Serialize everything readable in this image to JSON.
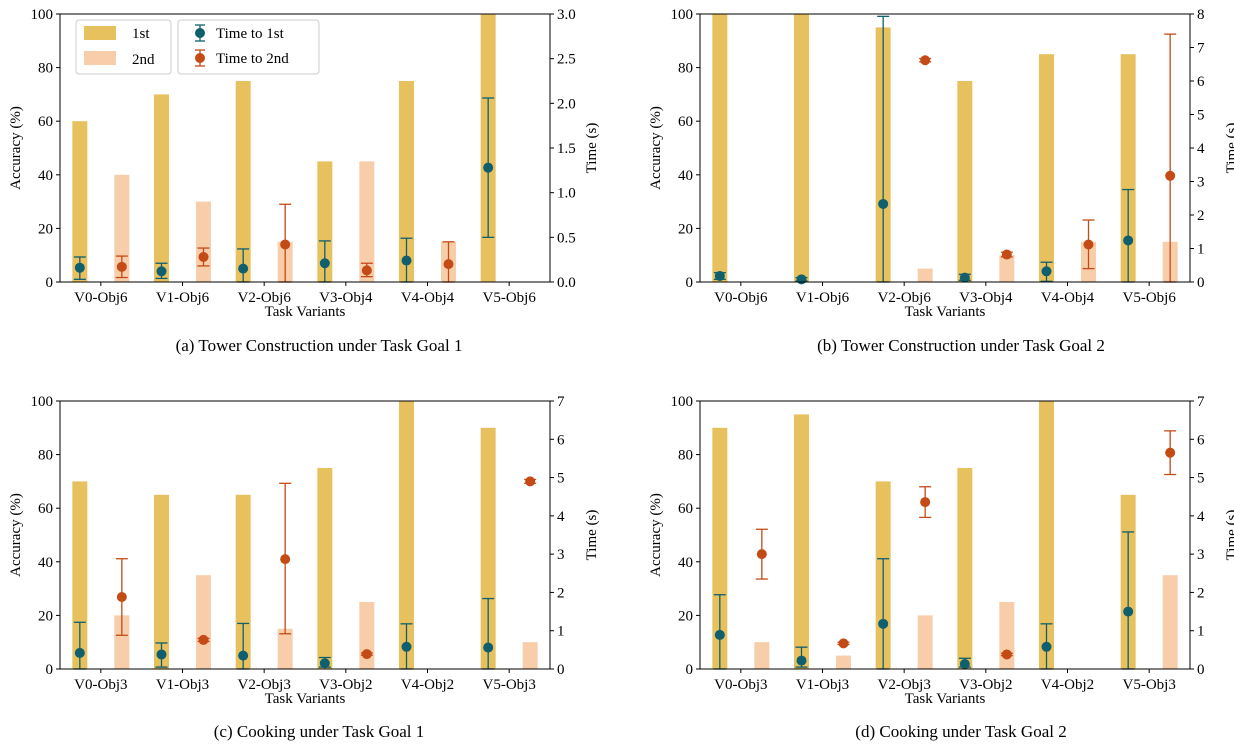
{
  "legend": {
    "bar_first": "1st",
    "bar_second": "2nd",
    "time_first": "Time to 1st",
    "time_second": "Time to 2nd"
  },
  "colors": {
    "bar_first": "#e8c15f",
    "bar_second": "#f8cdaa",
    "time_first": "#0f5f6e",
    "time_second": "#c44a16"
  },
  "chart_data": [
    {
      "type": "bar",
      "caption": "(a) Tower Construction under Task Goal 1",
      "categories": [
        "V0-Obj6",
        "V1-Obj6",
        "V2-Obj6",
        "V3-Obj4",
        "V4-Obj4",
        "V5-Obj6"
      ],
      "xlabel": "Task Variants",
      "ylabel": "Accuracy (%)",
      "y2label": "Time (s)",
      "ylim": [
        0,
        100
      ],
      "y2lim": [
        0,
        3.0
      ],
      "yticks": [
        "0",
        "20",
        "40",
        "60",
        "80",
        "100"
      ],
      "y2ticks": [
        "0.0",
        "0.5",
        "1.0",
        "1.5",
        "2.0",
        "2.5",
        "3.0"
      ],
      "legend_placement": "top-left",
      "series": [
        {
          "name": "1st",
          "values": [
            60,
            70,
            75,
            45,
            75,
            100
          ]
        },
        {
          "name": "2nd",
          "values": [
            40,
            30,
            15,
            45,
            15,
            0
          ]
        }
      ],
      "time_series": [
        {
          "name": "Time to 1st",
          "values": [
            0.16,
            0.12,
            0.15,
            0.21,
            0.24,
            1.28
          ],
          "err_low": [
            0.13,
            0.08,
            0.15,
            0.21,
            0.24,
            0.78
          ],
          "err_high": [
            0.12,
            0.09,
            0.22,
            0.25,
            0.25,
            0.78
          ]
        },
        {
          "name": "Time to 2nd",
          "values": [
            0.17,
            0.28,
            0.42,
            0.13,
            0.2,
            null
          ],
          "err_low": [
            0.12,
            0.1,
            0.42,
            0.07,
            0.2,
            null
          ],
          "err_high": [
            0.12,
            0.1,
            0.45,
            0.08,
            0.25,
            null
          ]
        }
      ]
    },
    {
      "type": "bar",
      "caption": "(b) Tower Construction under Task Goal 2",
      "categories": [
        "V0-Obj6",
        "V1-Obj6",
        "V2-Obj6",
        "V3-Obj4",
        "V4-Obj4",
        "V5-Obj6"
      ],
      "xlabel": "Task Variants",
      "ylabel": "Accuracy (%)",
      "y2label": "Time (s)",
      "ylim": [
        0,
        100
      ],
      "y2lim": [
        0,
        8
      ],
      "yticks": [
        "0",
        "20",
        "40",
        "60",
        "80",
        "100"
      ],
      "y2ticks": [
        "0",
        "1",
        "2",
        "3",
        "4",
        "5",
        "6",
        "7",
        "8"
      ],
      "series": [
        {
          "name": "1st",
          "values": [
            100,
            100,
            95,
            75,
            85,
            85
          ]
        },
        {
          "name": "2nd",
          "values": [
            0,
            0,
            5,
            10,
            15,
            15
          ]
        }
      ],
      "time_series": [
        {
          "name": "Time to 1st",
          "values": [
            0.18,
            0.08,
            2.33,
            0.13,
            0.32,
            1.24
          ],
          "err_low": [
            0.1,
            0.05,
            2.33,
            0.08,
            0.3,
            1.24
          ],
          "err_high": [
            0.1,
            0.05,
            5.6,
            0.1,
            0.27,
            1.52
          ]
        },
        {
          "name": "Time to 2nd",
          "values": [
            null,
            null,
            6.62,
            0.82,
            1.12,
            3.17
          ],
          "err_low": [
            null,
            null,
            0.05,
            0.07,
            0.72,
            3.17
          ],
          "err_high": [
            null,
            null,
            0.05,
            0.07,
            0.73,
            4.23
          ]
        }
      ]
    },
    {
      "type": "bar",
      "caption": "(c) Cooking under Task Goal 1",
      "categories": [
        "V0-Obj3",
        "V1-Obj3",
        "V2-Obj3",
        "V3-Obj2",
        "V4-Obj2",
        "V5-Obj3"
      ],
      "xlabel": "Task Variants",
      "ylabel": "Accuracy (%)",
      "y2label": "Time (s)",
      "ylim": [
        0,
        100
      ],
      "y2lim": [
        0,
        7
      ],
      "yticks": [
        "0",
        "20",
        "40",
        "60",
        "80",
        "100"
      ],
      "y2ticks": [
        "0",
        "1",
        "2",
        "3",
        "4",
        "5",
        "6",
        "7"
      ],
      "series": [
        {
          "name": "1st",
          "values": [
            70,
            65,
            65,
            75,
            100,
            90
          ]
        },
        {
          "name": "2nd",
          "values": [
            20,
            35,
            15,
            25,
            0,
            10
          ]
        }
      ],
      "time_series": [
        {
          "name": "Time to 1st",
          "values": [
            0.42,
            0.38,
            0.35,
            0.15,
            0.58,
            0.56
          ],
          "err_low": [
            0.42,
            0.33,
            0.35,
            0.1,
            0.58,
            0.56
          ],
          "err_high": [
            0.8,
            0.3,
            0.84,
            0.15,
            0.6,
            1.28
          ]
        },
        {
          "name": "Time to 2nd",
          "values": [
            1.88,
            0.76,
            2.87,
            0.39,
            null,
            4.9
          ],
          "err_low": [
            1.0,
            0.04,
            1.95,
            0.03,
            null,
            0.05
          ],
          "err_high": [
            1.0,
            0.04,
            1.98,
            0.03,
            null,
            0.05
          ]
        }
      ]
    },
    {
      "type": "bar",
      "caption": "(d) Cooking under Task Goal 2",
      "categories": [
        "V0-Obj3",
        "V1-Obj3",
        "V2-Obj3",
        "V3-Obj2",
        "V4-Obj2",
        "V5-Obj3"
      ],
      "xlabel": "Task Variants",
      "ylabel": "Accuracy (%)",
      "y2label": "Time (s)",
      "ylim": [
        0,
        100
      ],
      "y2lim": [
        0,
        7
      ],
      "yticks": [
        "0",
        "20",
        "40",
        "60",
        "80",
        "100"
      ],
      "y2ticks": [
        "0",
        "1",
        "2",
        "3",
        "4",
        "5",
        "6",
        "7"
      ],
      "series": [
        {
          "name": "1st",
          "values": [
            90,
            95,
            70,
            75,
            100,
            65
          ]
        },
        {
          "name": "2nd",
          "values": [
            10,
            5,
            20,
            25,
            0,
            35
          ]
        }
      ],
      "time_series": [
        {
          "name": "Time to 1st",
          "values": [
            0.89,
            0.22,
            1.18,
            0.13,
            0.58,
            1.5
          ],
          "err_low": [
            0.89,
            0.17,
            1.18,
            0.08,
            0.58,
            1.5
          ],
          "err_high": [
            1.05,
            0.35,
            1.7,
            0.15,
            0.6,
            2.08
          ]
        },
        {
          "name": "Time to 2nd",
          "values": [
            3.0,
            0.67,
            4.36,
            0.38,
            null,
            5.65
          ],
          "err_low": [
            0.65,
            0.03,
            0.4,
            0.03,
            null,
            0.57
          ],
          "err_high": [
            0.65,
            0.03,
            0.4,
            0.03,
            null,
            0.57
          ]
        }
      ]
    }
  ]
}
